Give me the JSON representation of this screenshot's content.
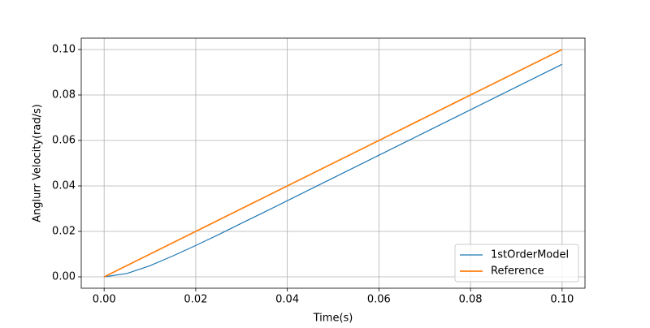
{
  "chart_data": {
    "type": "line",
    "xlabel": "Time(s)",
    "ylabel": "Anglurr Velocity(rad/s)",
    "x": [
      0,
      0.005,
      0.01,
      0.015,
      0.02,
      0.025,
      0.03,
      0.035,
      0.04,
      0.045,
      0.05,
      0.055,
      0.06,
      0.065,
      0.07,
      0.075,
      0.08,
      0.085,
      0.09,
      0.095,
      0.1
    ],
    "series": [
      {
        "name": "1stOrderModel",
        "color": "#1f77b4",
        "values": [
          0,
          0.0015,
          0.0049,
          0.0092,
          0.0138,
          0.0186,
          0.0236,
          0.0285,
          0.0335,
          0.0385,
          0.0435,
          0.0485,
          0.0535,
          0.0585,
          0.0635,
          0.0685,
          0.0735,
          0.0785,
          0.0835,
          0.0885,
          0.0935
        ]
      },
      {
        "name": "Reference",
        "color": "#ff7f0e",
        "values": [
          0,
          0.005,
          0.01,
          0.015,
          0.02,
          0.025,
          0.03,
          0.035,
          0.04,
          0.045,
          0.05,
          0.055,
          0.06,
          0.065,
          0.07,
          0.075,
          0.08,
          0.085,
          0.09,
          0.095,
          0.1
        ]
      }
    ],
    "xlim": [
      -0.005,
      0.105
    ],
    "ylim": [
      -0.005,
      0.105
    ],
    "xticks": [
      {
        "value": 0,
        "label": "0.00"
      },
      {
        "value": 0.02,
        "label": "0.02"
      },
      {
        "value": 0.04,
        "label": "0.04"
      },
      {
        "value": 0.06,
        "label": "0.06"
      },
      {
        "value": 0.08,
        "label": "0.08"
      },
      {
        "value": 0.1,
        "label": "0.10"
      }
    ],
    "yticks": [
      {
        "value": 0,
        "label": "0.00"
      },
      {
        "value": 0.02,
        "label": "0.02"
      },
      {
        "value": 0.04,
        "label": "0.04"
      },
      {
        "value": 0.06,
        "label": "0.06"
      },
      {
        "value": 0.08,
        "label": "0.08"
      },
      {
        "value": 0.1,
        "label": "0.10"
      }
    ],
    "grid": true,
    "legend": "lower right"
  }
}
